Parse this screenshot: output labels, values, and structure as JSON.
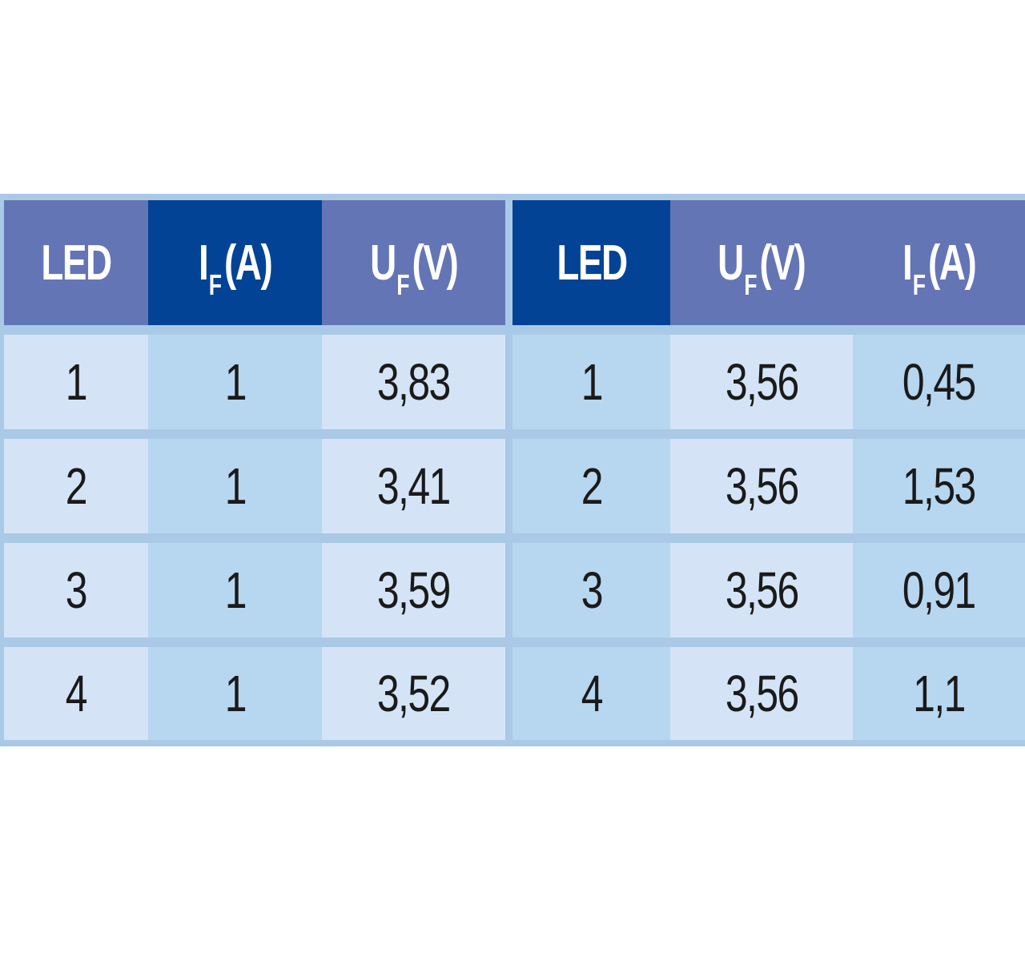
{
  "left_table": {
    "headers": [
      {
        "main": "LED",
        "sub": "",
        "unit": ""
      },
      {
        "main": "I",
        "sub": "F",
        "unit": "(A)"
      },
      {
        "main": "U",
        "sub": "F",
        "unit": "(V)"
      }
    ],
    "rows": [
      [
        "1",
        "1",
        "3,83"
      ],
      [
        "2",
        "1",
        "3,41"
      ],
      [
        "3",
        "1",
        "3,59"
      ],
      [
        "4",
        "1",
        "3,52"
      ]
    ]
  },
  "right_table": {
    "headers": [
      {
        "main": "LED",
        "sub": "",
        "unit": ""
      },
      {
        "main": "U",
        "sub": "F",
        "unit": "(V)"
      },
      {
        "main": "I",
        "sub": "F",
        "unit": "(A)"
      }
    ],
    "rows": [
      [
        "1",
        "3,56",
        "0,45"
      ],
      [
        "2",
        "3,56",
        "1,53"
      ],
      [
        "3",
        "3,56",
        "0,91"
      ],
      [
        "4",
        "3,56",
        "1,1"
      ]
    ]
  },
  "colors": {
    "header_light": "#6475b6",
    "header_dark": "#024396",
    "cell_light": "#d4e4f6",
    "cell_mid": "#b7d6f0",
    "grid": "#a9c9e6"
  }
}
